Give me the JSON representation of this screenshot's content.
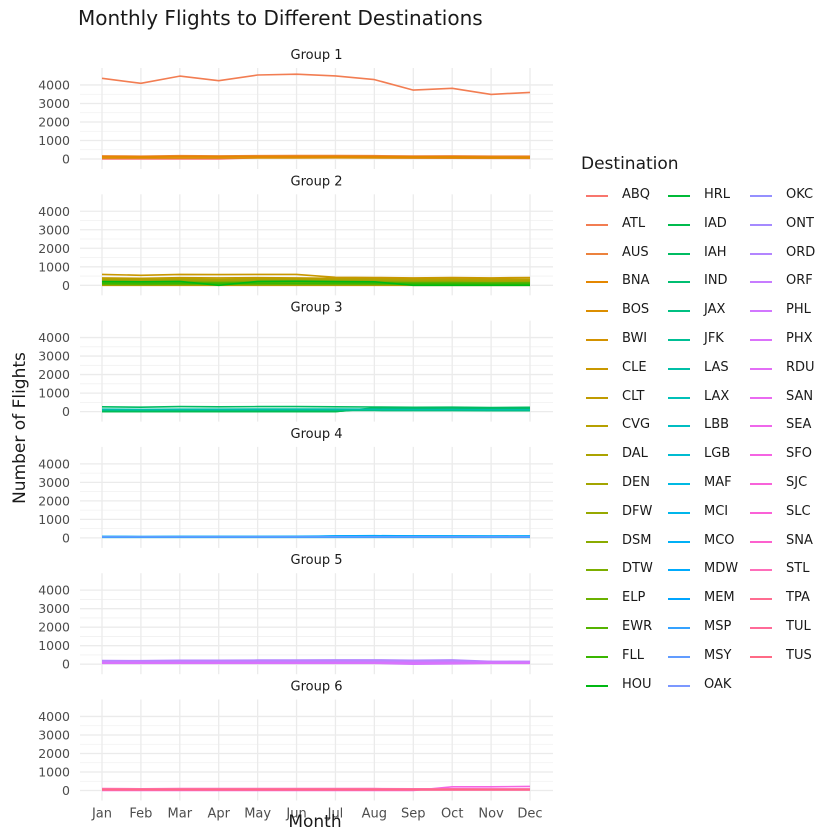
{
  "chart_data": {
    "type": "line",
    "title": "Monthly Flights to Different Destinations",
    "xlabel": "Month",
    "ylabel": "Number of Flights",
    "categories": [
      "Jan",
      "Feb",
      "Mar",
      "Apr",
      "May",
      "Jun",
      "Jul",
      "Aug",
      "Sep",
      "Oct",
      "Nov",
      "Dec"
    ],
    "ylim": [
      0,
      4700
    ],
    "yticks": [
      0,
      1000,
      2000,
      3000,
      4000
    ],
    "grid": true,
    "legend_title": "Destination",
    "legend_position": "right",
    "panels": [
      {
        "label": "Group 1",
        "series": [
          {
            "name": "ABQ",
            "color": "#F8766D",
            "values": [
              0,
              0,
              0,
              0,
              70,
              70,
              70,
              70,
              50,
              45,
              40,
              30
            ]
          },
          {
            "name": "ATL",
            "color": "#F27D52",
            "values": [
              4360,
              4090,
              4480,
              4230,
              4540,
              4580,
              4490,
              4290,
              3720,
              3820,
              3490,
              3600
            ]
          },
          {
            "name": "AUS",
            "color": "#EC823D",
            "values": [
              170,
              150,
              180,
              170,
              180,
              190,
              190,
              180,
              160,
              170,
              150,
              150
            ]
          },
          {
            "name": "BNA",
            "color": "#E58700",
            "values": [
              130,
              120,
              140,
              130,
              140,
              140,
              140,
              130,
              120,
              120,
              110,
              110
            ]
          },
          {
            "name": "BOS",
            "color": "#DC8E00",
            "values": [
              60,
              55,
              60,
              60,
              60,
              60,
              65,
              60,
              55,
              60,
              50,
              50
            ]
          }
        ]
      },
      {
        "label": "Group 2",
        "series": [
          {
            "name": "BWI",
            "color": "#D39200",
            "values": [
              0,
              0,
              0,
              0,
              0,
              0,
              0,
              0,
              0,
              0,
              0,
              0
            ]
          },
          {
            "name": "CLE",
            "color": "#C99800",
            "values": [
              590,
              540,
              590,
              580,
              590,
              590,
              430,
              420,
              400,
              420,
              400,
              420
            ]
          },
          {
            "name": "CLT",
            "color": "#C09B00",
            "values": [
              400,
              380,
              410,
              400,
              410,
              400,
              380,
              360,
              340,
              350,
              330,
              340
            ]
          },
          {
            "name": "CVG",
            "color": "#B6A000",
            "values": [
              330,
              310,
              330,
              320,
              330,
              340,
              320,
              310,
              290,
              300,
              280,
              290
            ]
          },
          {
            "name": "DAL",
            "color": "#ABA300",
            "values": [
              280,
              260,
              280,
              270,
              280,
              280,
              270,
              260,
              240,
              250,
              230,
              240
            ]
          },
          {
            "name": "DEN",
            "color": "#A3A500",
            "values": [
              220,
              200,
              230,
              220,
              230,
              240,
              230,
              220,
              200,
              210,
              190,
              200
            ]
          },
          {
            "name": "DFW",
            "color": "#97A900",
            "values": [
              170,
              160,
              180,
              170,
              180,
              190,
              180,
              170,
              160,
              160,
              150,
              150
            ]
          },
          {
            "name": "DSM",
            "color": "#8AAB00",
            "values": [
              120,
              110,
              120,
              120,
              130,
              130,
              130,
              120,
              110,
              110,
              100,
              100
            ]
          },
          {
            "name": "DTW",
            "color": "#7CAE00",
            "values": [
              100,
              90,
              110,
              100,
              110,
              120,
              110,
              100,
              90,
              90,
              80,
              80
            ]
          },
          {
            "name": "ELP",
            "color": "#6BB100",
            "values": [
              40,
              35,
              40,
              40,
              40,
              40,
              40,
              40,
              35,
              35,
              30,
              30
            ]
          },
          {
            "name": "EWR",
            "color": "#55B300",
            "values": [
              150,
              140,
              160,
              150,
              170,
              180,
              170,
              160,
              140,
              150,
              130,
              140
            ]
          },
          {
            "name": "FLL",
            "color": "#39B600",
            "values": [
              90,
              80,
              90,
              90,
              100,
              100,
              100,
              90,
              80,
              80,
              70,
              70
            ]
          },
          {
            "name": "HOU",
            "color": "#00B813",
            "values": [
              200,
              190,
              210,
              0,
              210,
              220,
              200,
              190,
              0,
              0,
              0,
              0
            ]
          }
        ]
      },
      {
        "label": "Group 3",
        "series": [
          {
            "name": "HRL",
            "color": "#00BA38",
            "values": [
              0,
              0,
              0,
              0,
              0,
              0,
              0,
              200,
              210,
              230,
              180,
              220
            ]
          },
          {
            "name": "IAD",
            "color": "#00BB4E",
            "values": [
              0,
              0,
              0,
              0,
              0,
              0,
              0,
              170,
              180,
              190,
              160,
              170
            ]
          },
          {
            "name": "IAH",
            "color": "#00BC62",
            "values": [
              260,
              240,
              270,
              260,
              270,
              270,
              260,
              250,
              230,
              240,
              220,
              230
            ]
          },
          {
            "name": "IND",
            "color": "#00BE71",
            "values": [
              60,
              55,
              65,
              60,
              65,
              65,
              60,
              60,
              55,
              55,
              50,
              50
            ]
          },
          {
            "name": "JAX",
            "color": "#00C082",
            "values": [
              90,
              85,
              95,
              90,
              95,
              95,
              90,
              90,
              85,
              85,
              80,
              80
            ]
          },
          {
            "name": "JFK",
            "color": "#00BF95",
            "values": [
              110,
              100,
              110,
              110,
              110,
              115,
              110,
              105,
              100,
              100,
              95,
              95
            ]
          },
          {
            "name": "LAS",
            "color": "#00BFA7",
            "values": [
              130,
              120,
              130,
              130,
              135,
              140,
              135,
              130,
              120,
              120,
              110,
              110
            ]
          }
        ]
      },
      {
        "label": "Group 4",
        "series": [
          {
            "name": "LAX",
            "color": "#00C0B8",
            "values": [
              60,
              60,
              60,
              60,
              60,
              60,
              60,
              60,
              55,
              55,
              50,
              50
            ]
          },
          {
            "name": "LBB",
            "color": "#00BDC2",
            "values": [
              30,
              30,
              30,
              30,
              30,
              30,
              30,
              30,
              30,
              30,
              30,
              30
            ]
          },
          {
            "name": "LGB",
            "color": "#00BCD1",
            "values": [
              40,
              40,
              40,
              40,
              40,
              40,
              40,
              40,
              40,
              40,
              40,
              40
            ]
          },
          {
            "name": "MAF",
            "color": "#00B9E3",
            "values": [
              50,
              50,
              50,
              50,
              50,
              50,
              50,
              50,
              50,
              50,
              50,
              50
            ]
          },
          {
            "name": "MCI",
            "color": "#00B6EB",
            "values": [
              70,
              65,
              70,
              70,
              70,
              75,
              90,
              95,
              95,
              100,
              90,
              90
            ]
          },
          {
            "name": "MCO",
            "color": "#00B0F6",
            "values": [
              80,
              75,
              80,
              80,
              80,
              85,
              100,
              100,
              100,
              100,
              95,
              95
            ]
          },
          {
            "name": "MDW",
            "color": "#00ABFD",
            "values": [
              60,
              60,
              60,
              60,
              60,
              60,
              110,
              120,
              110,
              100,
              90,
              100
            ]
          },
          {
            "name": "MEM",
            "color": "#00A5FF",
            "values": [
              40,
              40,
              40,
              40,
              40,
              40,
              40,
              40,
              40,
              40,
              40,
              40
            ]
          },
          {
            "name": "MSP",
            "color": "#35A2FF",
            "values": [
              50,
              50,
              50,
              50,
              50,
              50,
              50,
              50,
              50,
              50,
              50,
              50
            ]
          },
          {
            "name": "MSY",
            "color": "#619CFF",
            "values": [
              60,
              60,
              60,
              60,
              60,
              60,
              60,
              60,
              60,
              60,
              60,
              60
            ]
          }
        ]
      },
      {
        "label": "Group 5",
        "series": [
          {
            "name": "OAK",
            "color": "#7C98FF",
            "values": [
              60,
              60,
              60,
              60,
              60,
              60,
              60,
              60,
              60,
              60,
              60,
              60
            ]
          },
          {
            "name": "OKC",
            "color": "#9590FF",
            "values": [
              90,
              90,
              90,
              90,
              90,
              90,
              90,
              90,
              90,
              90,
              90,
              90
            ]
          },
          {
            "name": "ONT",
            "color": "#A58AFF",
            "values": [
              180,
              170,
              180,
              180,
              180,
              190,
              190,
              190,
              180,
              170,
              100,
              90
            ]
          },
          {
            "name": "ORD",
            "color": "#B385FF",
            "values": [
              200,
              190,
              210,
              210,
              220,
              220,
              230,
              230,
              210,
              230,
              150,
              140
            ]
          },
          {
            "name": "ORF",
            "color": "#C77CFF",
            "values": [
              150,
              150,
              150,
              150,
              150,
              150,
              150,
              150,
              150,
              150,
              150,
              150
            ]
          },
          {
            "name": "PHL",
            "color": "#D277FF",
            "values": [
              50,
              50,
              50,
              50,
              50,
              50,
              50,
              50,
              0,
              20,
              50,
              50
            ]
          },
          {
            "name": "PHX",
            "color": "#DB72FB",
            "values": [
              70,
              70,
              70,
              70,
              70,
              70,
              70,
              70,
              70,
              70,
              70,
              70
            ]
          }
        ]
      },
      {
        "label": "Group 6",
        "series": [
          {
            "name": "RDU",
            "color": "#E36EF6",
            "values": [
              40,
              40,
              40,
              40,
              40,
              40,
              40,
              40,
              40,
              40,
              40,
              40
            ]
          },
          {
            "name": "SAN",
            "color": "#EA6AF1",
            "values": [
              60,
              60,
              60,
              60,
              60,
              60,
              60,
              60,
              60,
              60,
              60,
              60
            ]
          },
          {
            "name": "SEA",
            "color": "#EF67EB",
            "values": [
              70,
              70,
              70,
              70,
              70,
              70,
              70,
              70,
              70,
              70,
              70,
              70
            ]
          },
          {
            "name": "SFO",
            "color": "#F564E3",
            "values": [
              0,
              0,
              0,
              0,
              0,
              0,
              0,
              0,
              0,
              200,
              200,
              220
            ]
          },
          {
            "name": "SJC",
            "color": "#F863DA",
            "values": [
              50,
              50,
              50,
              50,
              50,
              50,
              50,
              50,
              50,
              50,
              50,
              50
            ]
          },
          {
            "name": "SLC",
            "color": "#FB61D7",
            "values": [
              90,
              80,
              90,
              90,
              90,
              90,
              90,
              90,
              80,
              80,
              80,
              80
            ]
          },
          {
            "name": "SNA",
            "color": "#FD61CE",
            "values": [
              40,
              40,
              40,
              40,
              40,
              40,
              40,
              40,
              40,
              40,
              40,
              40
            ]
          },
          {
            "name": "STL",
            "color": "#FE6EBA",
            "values": [
              100,
              90,
              100,
              100,
              110,
              110,
              110,
              100,
              90,
              90,
              80,
              80
            ]
          },
          {
            "name": "TPA",
            "color": "#FF6C91",
            "values": [
              60,
              60,
              60,
              60,
              60,
              60,
              60,
              60,
              60,
              60,
              60,
              60
            ]
          },
          {
            "name": "TUL",
            "color": "#FF6A98",
            "values": [
              30,
              30,
              30,
              30,
              30,
              30,
              30,
              30,
              30,
              30,
              30,
              30
            ]
          },
          {
            "name": "TUS",
            "color": "#FF6A86",
            "values": [
              50,
              50,
              50,
              50,
              50,
              50,
              50,
              50,
              50,
              50,
              50,
              50
            ]
          }
        ]
      }
    ]
  }
}
